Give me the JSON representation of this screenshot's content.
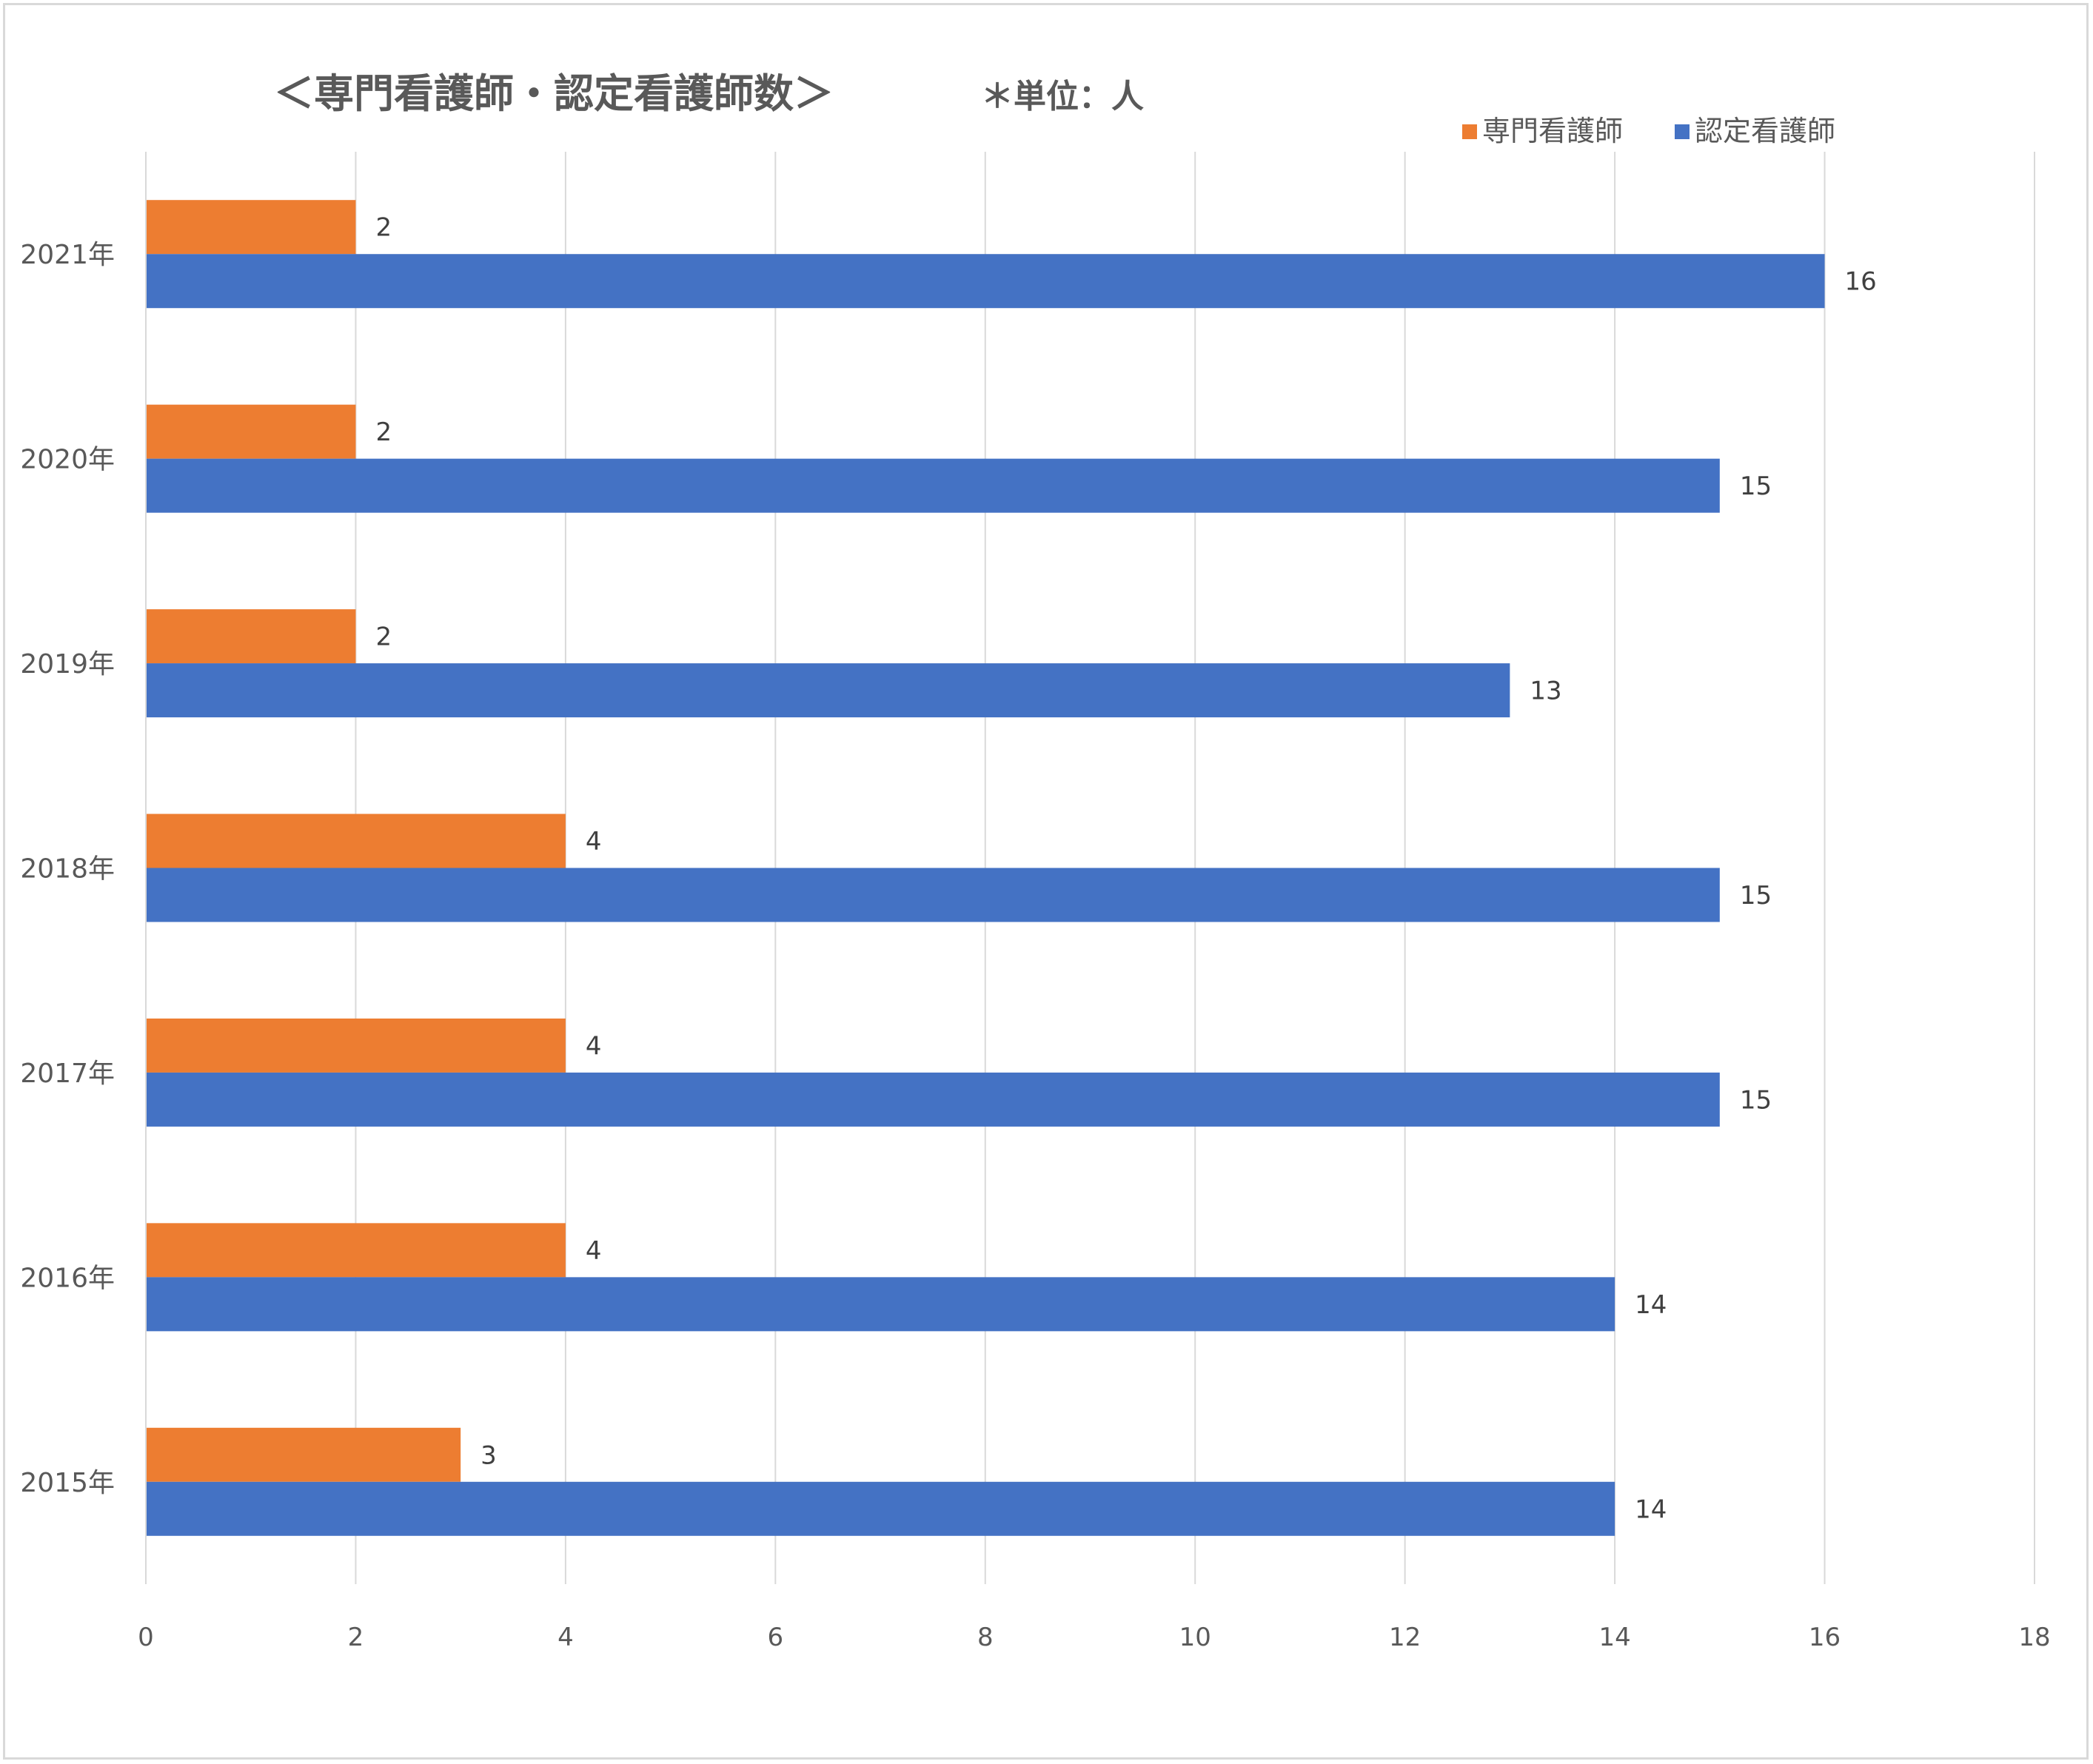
{
  "chart_data": {
    "type": "bar",
    "orientation": "horizontal",
    "title": "＜専門看護師・認定看護師数＞",
    "unit_note": "＊単位：人",
    "categories": [
      "2021年",
      "2020年",
      "2019年",
      "2018年",
      "2017年",
      "2016年",
      "2015年"
    ],
    "series": [
      {
        "name": "専門看護師",
        "color": "#ED7D31",
        "values": [
          2,
          2,
          2,
          4,
          4,
          4,
          3
        ]
      },
      {
        "name": "認定看護師",
        "color": "#4472C4",
        "values": [
          16,
          15,
          13,
          15,
          15,
          14,
          14
        ]
      }
    ],
    "xlim": [
      0,
      18
    ],
    "x_ticks": [
      0,
      2,
      4,
      6,
      8,
      10,
      12,
      14,
      16,
      18
    ],
    "grid": true,
    "legend_position": "top-right",
    "data_labels": true
  }
}
